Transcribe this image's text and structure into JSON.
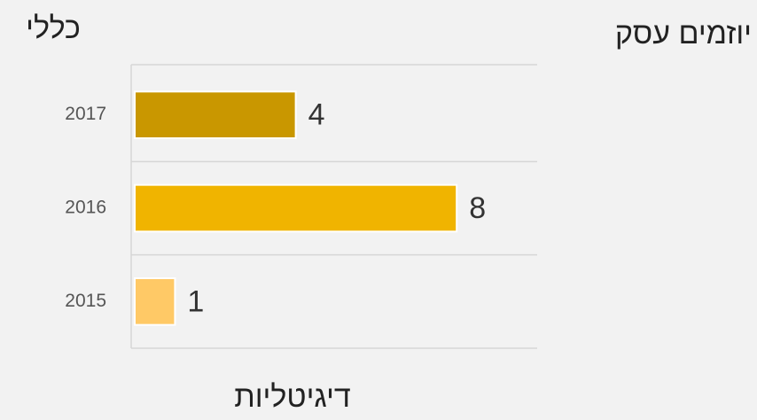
{
  "chart_data": {
    "type": "barh",
    "title": "כללי",
    "subtitle": "יוזמים עסק",
    "xlabel": "דיגיטליות",
    "categories": [
      "2017",
      "2016",
      "2015"
    ],
    "values": [
      4,
      8,
      1
    ],
    "colors": [
      "#c99700",
      "#f0b400",
      "#ffc966"
    ],
    "xlim": [
      0,
      10
    ],
    "grid": true
  }
}
